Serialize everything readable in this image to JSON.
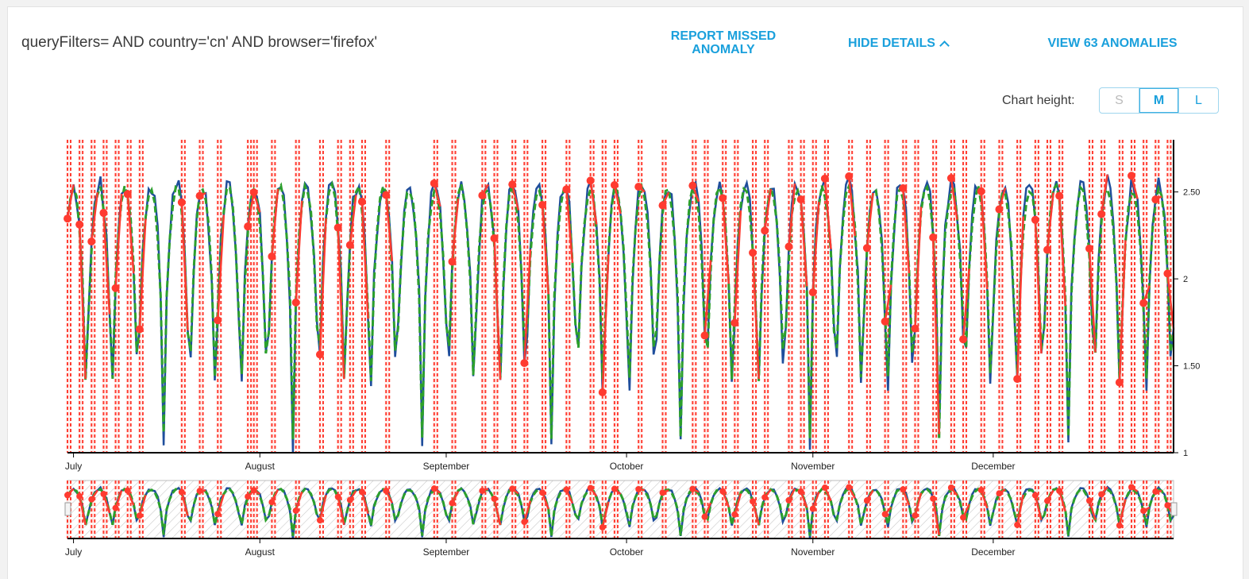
{
  "header": {
    "query_filters": "queryFilters= AND country='cn' AND browser='firefox'",
    "report_missed": "REPORT MISSED ANOMALY",
    "hide_details": "HIDE DETAILS",
    "view_anomalies": "VIEW 63 ANOMALIES"
  },
  "chart_height": {
    "label": "Chart height:",
    "options": [
      "S",
      "M",
      "L"
    ],
    "selected": "M"
  },
  "colors": {
    "current": "#1f4e9c",
    "baseline": "#2ca02c",
    "anomaly": "#ff3b30",
    "accent": "#1aa0dc"
  },
  "chart_data": {
    "type": "line",
    "x_type": "time",
    "x_range": [
      "2016-06-30",
      "2016-12-31"
    ],
    "ylim": [
      1,
      2.8
    ],
    "y_ticks": [
      1,
      1.5,
      2,
      2.5
    ],
    "y_tick_labels": [
      "1",
      "1.50",
      "2",
      "2.50"
    ],
    "month_ticks": [
      {
        "date": "2016-07-01",
        "label": "July"
      },
      {
        "date": "2016-08-01",
        "label": "August"
      },
      {
        "date": "2016-09-01",
        "label": "September"
      },
      {
        "date": "2016-10-01",
        "label": "October"
      },
      {
        "date": "2016-11-01",
        "label": "November"
      },
      {
        "date": "2016-12-01",
        "label": "December"
      }
    ],
    "series": [
      {
        "role": "current",
        "style": "solid",
        "daily_peak": 2.55,
        "daily_trough": 1.05
      },
      {
        "role": "baseline",
        "style": "dashed",
        "daily_peak": 2.52,
        "daily_trough": 1.1
      }
    ],
    "anomaly_count": 63,
    "anomaly_dates": [
      "2016-06-30",
      "2016-07-02",
      "2016-07-04",
      "2016-07-06",
      "2016-07-08",
      "2016-07-10",
      "2016-07-12",
      "2016-07-19",
      "2016-07-22",
      "2016-07-25",
      "2016-07-30",
      "2016-07-31",
      "2016-08-03",
      "2016-08-07",
      "2016-08-11",
      "2016-08-14",
      "2016-08-16",
      "2016-08-18",
      "2016-08-22",
      "2016-08-30",
      "2016-09-02",
      "2016-09-07",
      "2016-09-09",
      "2016-09-12",
      "2016-09-14",
      "2016-09-17",
      "2016-09-21",
      "2016-09-25",
      "2016-09-27",
      "2016-09-29",
      "2016-10-03",
      "2016-10-07",
      "2016-10-12",
      "2016-10-14",
      "2016-10-17",
      "2016-10-19",
      "2016-10-22",
      "2016-10-24",
      "2016-10-28",
      "2016-10-30",
      "2016-11-01",
      "2016-11-03",
      "2016-11-07",
      "2016-11-10",
      "2016-11-13",
      "2016-11-16",
      "2016-11-18",
      "2016-11-21",
      "2016-11-24",
      "2016-11-26",
      "2016-11-29",
      "2016-12-02",
      "2016-12-05",
      "2016-12-08",
      "2016-12-10",
      "2016-12-12",
      "2016-12-17",
      "2016-12-19",
      "2016-12-22",
      "2016-12-24",
      "2016-12-26",
      "2016-12-28",
      "2016-12-30"
    ]
  }
}
